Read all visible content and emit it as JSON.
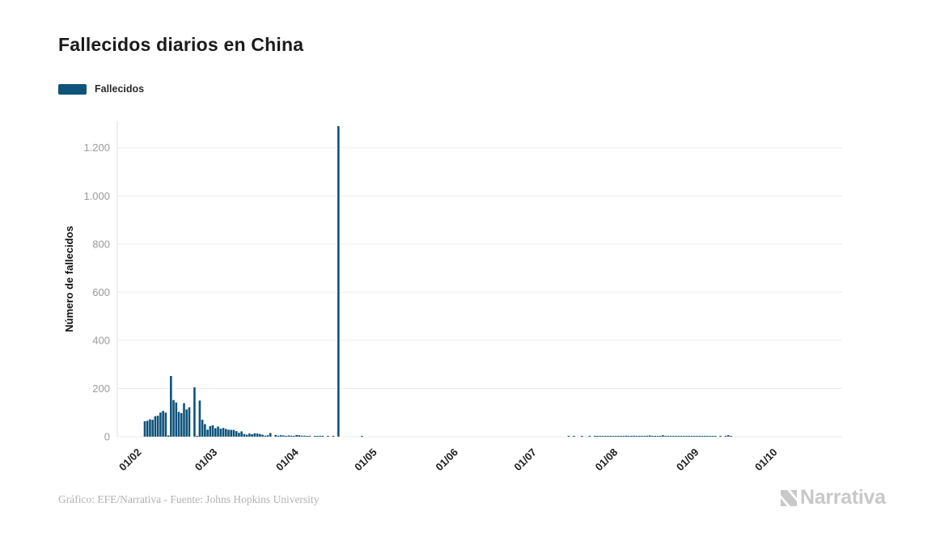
{
  "header": {
    "title": "Fallecidos diarios en China"
  },
  "legend": {
    "label": "Fallecidos",
    "swatch_color": "#0e537a"
  },
  "footer": {
    "credit": "Gráfico: EFE/Narrativa - Fuente: Johns Hopkins University",
    "brand": "Narrativa"
  },
  "chart_data": {
    "type": "bar",
    "title": "Fallecidos diarios en China",
    "xlabel": "",
    "ylabel": "Número de fallecidos",
    "legend_entries": [
      "Fallecidos"
    ],
    "legend_position": "top-left",
    "grid": true,
    "bar_color": "#0e537a",
    "ylim": [
      0,
      1310
    ],
    "yticks": [
      0,
      200,
      400,
      600,
      800,
      1000,
      1200
    ],
    "ytick_labels": [
      "0",
      "200",
      "400",
      "600",
      "800",
      "1.000",
      "1.200"
    ],
    "x_ticks": [
      {
        "label": "01/02",
        "day_index": 8
      },
      {
        "label": "01/03",
        "day_index": 37
      },
      {
        "label": "01/04",
        "day_index": 68
      },
      {
        "label": "01/05",
        "day_index": 98
      },
      {
        "label": "01/06",
        "day_index": 129
      },
      {
        "label": "01/07",
        "day_index": 159
      },
      {
        "label": "01/08",
        "day_index": 190
      },
      {
        "label": "01/09",
        "day_index": 221
      },
      {
        "label": "01/10",
        "day_index": 251
      }
    ],
    "series": [
      {
        "name": "Fallecidos",
        "start_date": "24/01/2020",
        "end_date": "26/10/2020",
        "peak_value": 1290,
        "peak_date": "17/04/2020",
        "values": [
          0,
          0,
          0,
          0,
          0,
          0,
          0,
          0,
          0,
          0,
          64,
          66,
          72,
          70,
          85,
          87,
          100,
          107,
          100,
          5,
          252,
          152,
          142,
          103,
          98,
          139,
          113,
          122,
          0,
          205,
          2,
          150,
          70,
          52,
          29,
          44,
          47,
          35,
          42,
          33,
          36,
          32,
          29,
          28,
          28,
          23,
          16,
          22,
          11,
          8,
          13,
          10,
          14,
          13,
          11,
          8,
          4,
          6,
          15,
          0,
          7,
          4,
          6,
          5,
          3,
          5,
          4,
          1,
          7,
          6,
          4,
          4,
          3,
          2,
          0,
          2,
          2,
          1,
          3,
          0,
          2,
          0,
          1,
          0,
          1290,
          0,
          0,
          0,
          0,
          0,
          0,
          0,
          0,
          1,
          0,
          0,
          0,
          0,
          0,
          0,
          0,
          0,
          0,
          0,
          0,
          0,
          0,
          0,
          0,
          0,
          0,
          0,
          0,
          0,
          0,
          0,
          0,
          0,
          0,
          0,
          0,
          0,
          0,
          0,
          0,
          0,
          0,
          0,
          0,
          0,
          0,
          0,
          0,
          0,
          0,
          0,
          0,
          0,
          0,
          0,
          0,
          0,
          0,
          0,
          0,
          0,
          0,
          0,
          0,
          0,
          0,
          0,
          0,
          0,
          0,
          0,
          0,
          0,
          0,
          0,
          0,
          0,
          0,
          0,
          0,
          0,
          0,
          0,
          0,
          0,
          0,
          0,
          1,
          0,
          1,
          0,
          0,
          1,
          0,
          0,
          2,
          0,
          2,
          1,
          1,
          1,
          1,
          2,
          3,
          3,
          2,
          2,
          3,
          2,
          4,
          3,
          3,
          4,
          3,
          2,
          3,
          3,
          4,
          5,
          3,
          3,
          2,
          3,
          6,
          3,
          2,
          2,
          2,
          3,
          2,
          1,
          2,
          1,
          2,
          2,
          1,
          2,
          1,
          2,
          1,
          1,
          2,
          1,
          1,
          0,
          1,
          0,
          1,
          6,
          1,
          0,
          0,
          0,
          0,
          0,
          0,
          0,
          0,
          0,
          0,
          0,
          0,
          0,
          0,
          0,
          0,
          0,
          0,
          0,
          0,
          0,
          0,
          0,
          0,
          0,
          0,
          0,
          0,
          0,
          0,
          0,
          0,
          0,
          0,
          0,
          0,
          0,
          0,
          0,
          0,
          0,
          0
        ]
      }
    ]
  }
}
